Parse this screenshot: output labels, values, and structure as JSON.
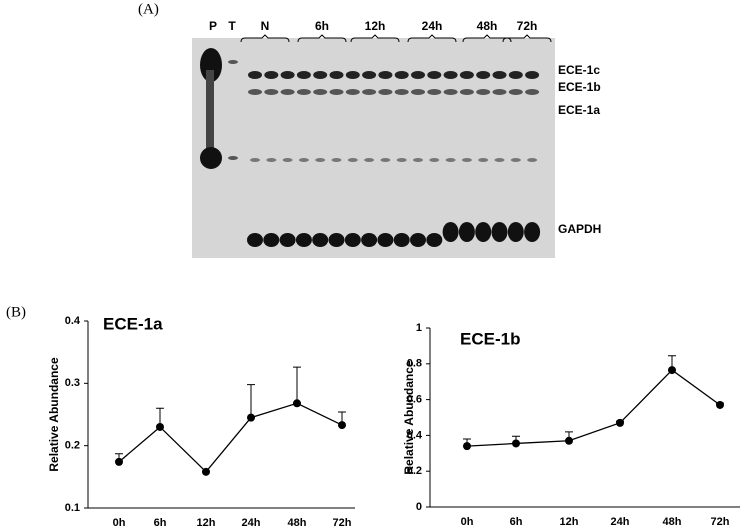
{
  "panel_a": {
    "label": "(A)",
    "lanes": [
      "P",
      "T",
      "N",
      "6h",
      "12h",
      "24h",
      "48h",
      "72h"
    ],
    "bands": [
      "ECE-1c",
      "ECE-1b",
      "ECE-1a",
      "GAPDH"
    ]
  },
  "panel_b_label": "(B)",
  "chart_data": [
    {
      "type": "line",
      "title": "ECE-1a",
      "y_label": "Relative Abundance",
      "categories": [
        "0h",
        "6h",
        "12h",
        "24h",
        "48h",
        "72h"
      ],
      "values": [
        0.174,
        0.23,
        0.158,
        0.245,
        0.268,
        0.233
      ],
      "errors": [
        0.013,
        0.03,
        0,
        0.053,
        0.058,
        0.021
      ],
      "color": "#000000",
      "ylim": [
        0.1,
        0.4
      ],
      "yticks": [
        0.1,
        0.2,
        0.3,
        0.4
      ]
    },
    {
      "type": "line",
      "title": "ECE-1b",
      "y_label": "Relative Abundance",
      "categories": [
        "0h",
        "6h",
        "12h",
        "24h",
        "48h",
        "72h"
      ],
      "values": [
        0.34,
        0.355,
        0.37,
        0.47,
        0.765,
        0.57
      ],
      "errors": [
        0.04,
        0.04,
        0.05,
        0.01,
        0.08,
        0.01
      ],
      "color": "#000000",
      "ylim": [
        0,
        1
      ],
      "yticks": [
        0,
        0.2,
        0.4,
        0.6,
        0.8,
        1
      ]
    }
  ]
}
